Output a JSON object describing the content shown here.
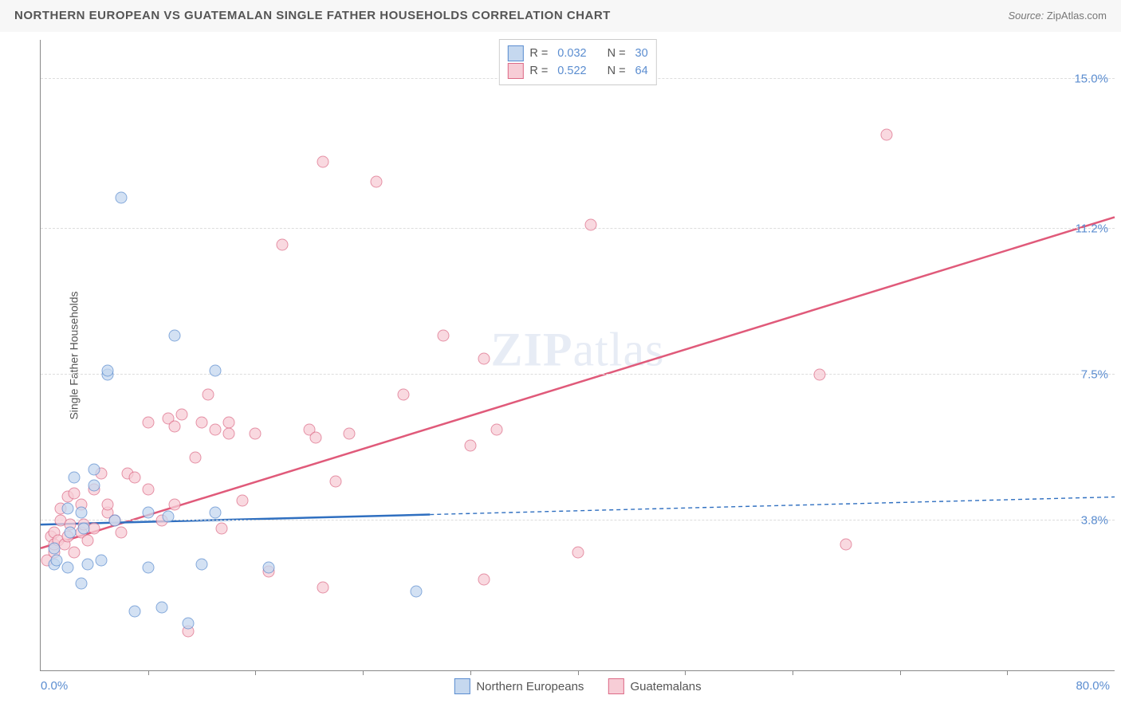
{
  "title": "NORTHERN EUROPEAN VS GUATEMALAN SINGLE FATHER HOUSEHOLDS CORRELATION CHART",
  "source_prefix": "Source: ",
  "source_name": "ZipAtlas.com",
  "ylabel": "Single Father Households",
  "watermark_a": "ZIP",
  "watermark_b": "atlas",
  "chart": {
    "type": "scatter",
    "xlim": [
      0,
      80
    ],
    "ylim": [
      0,
      16
    ],
    "xmin_label": "0.0%",
    "xmax_label": "80.0%",
    "xticks": [
      8,
      16,
      24,
      32,
      40,
      48,
      56,
      64,
      72
    ],
    "ylines": [
      {
        "y": 3.8,
        "label": "3.8%"
      },
      {
        "y": 7.5,
        "label": "7.5%"
      },
      {
        "y": 11.2,
        "label": "11.2%"
      },
      {
        "y": 15.0,
        "label": "15.0%"
      }
    ],
    "background_color": "#ffffff",
    "grid_color": "#dddddd",
    "axis_color": "#888888",
    "tick_label_color": "#5b8dd0"
  },
  "series_ne": {
    "label": "Northern Europeans",
    "fill": "#c5d8ef",
    "stroke": "#5b8dd0",
    "line_color": "#2f6fc0",
    "r_value": "0.032",
    "n_value": "30",
    "trend": {
      "x1": 0,
      "y1": 3.7,
      "x2": 80,
      "y2": 4.4,
      "solid_end_x": 29
    },
    "points": [
      [
        1,
        2.7
      ],
      [
        1,
        3.1
      ],
      [
        1.2,
        2.8
      ],
      [
        2,
        2.6
      ],
      [
        2,
        4.1
      ],
      [
        2.2,
        3.5
      ],
      [
        2.5,
        4.9
      ],
      [
        3,
        2.2
      ],
      [
        3,
        4.0
      ],
      [
        3.2,
        3.6
      ],
      [
        3.5,
        2.7
      ],
      [
        4,
        4.7
      ],
      [
        4,
        5.1
      ],
      [
        4.5,
        2.8
      ],
      [
        5,
        7.5
      ],
      [
        5,
        7.6
      ],
      [
        5.5,
        3.8
      ],
      [
        6,
        12.0
      ],
      [
        7,
        1.5
      ],
      [
        8,
        2.6
      ],
      [
        8,
        4.0
      ],
      [
        9,
        1.6
      ],
      [
        9.5,
        3.9
      ],
      [
        10,
        8.5
      ],
      [
        11,
        1.2
      ],
      [
        12,
        2.7
      ],
      [
        13,
        4.0
      ],
      [
        13,
        7.6
      ],
      [
        17,
        2.6
      ],
      [
        28,
        2.0
      ]
    ]
  },
  "series_g": {
    "label": "Guatemalans",
    "fill": "#f7cdd6",
    "stroke": "#dd6b87",
    "line_color": "#e05a7a",
    "r_value": "0.522",
    "n_value": "64",
    "trend": {
      "x1": 0,
      "y1": 3.1,
      "x2": 80,
      "y2": 11.5
    },
    "points": [
      [
        0.5,
        2.8
      ],
      [
        0.8,
        3.4
      ],
      [
        1,
        3.0
      ],
      [
        1,
        3.5
      ],
      [
        1,
        3.2
      ],
      [
        1.3,
        3.3
      ],
      [
        1.5,
        3.8
      ],
      [
        1.5,
        4.1
      ],
      [
        1.8,
        3.2
      ],
      [
        2,
        3.4
      ],
      [
        2,
        4.4
      ],
      [
        2.2,
        3.7
      ],
      [
        2.5,
        3.0
      ],
      [
        2.5,
        4.5
      ],
      [
        3,
        3.5
      ],
      [
        3,
        4.2
      ],
      [
        3.2,
        3.7
      ],
      [
        3.5,
        3.3
      ],
      [
        4,
        4.6
      ],
      [
        4,
        3.6
      ],
      [
        4.5,
        5.0
      ],
      [
        5,
        4.0
      ],
      [
        5,
        4.2
      ],
      [
        5.5,
        3.8
      ],
      [
        6,
        3.5
      ],
      [
        6.5,
        5.0
      ],
      [
        7,
        4.9
      ],
      [
        8,
        6.3
      ],
      [
        8,
        4.6
      ],
      [
        9,
        3.8
      ],
      [
        9.5,
        6.4
      ],
      [
        10,
        6.2
      ],
      [
        10,
        4.2
      ],
      [
        10.5,
        6.5
      ],
      [
        11,
        1.0
      ],
      [
        11.5,
        5.4
      ],
      [
        12,
        6.3
      ],
      [
        12.5,
        7.0
      ],
      [
        13,
        6.1
      ],
      [
        13.5,
        3.6
      ],
      [
        14,
        6.0
      ],
      [
        14,
        6.3
      ],
      [
        15,
        4.3
      ],
      [
        16,
        6.0
      ],
      [
        17,
        2.5
      ],
      [
        18,
        10.8
      ],
      [
        20,
        6.1
      ],
      [
        20.5,
        5.9
      ],
      [
        21,
        2.1
      ],
      [
        21,
        12.9
      ],
      [
        22,
        4.8
      ],
      [
        23,
        6.0
      ],
      [
        25,
        12.4
      ],
      [
        27,
        7.0
      ],
      [
        30,
        8.5
      ],
      [
        32,
        5.7
      ],
      [
        33,
        7.9
      ],
      [
        33,
        2.3
      ],
      [
        34,
        6.1
      ],
      [
        40,
        3.0
      ],
      [
        41,
        11.3
      ],
      [
        58,
        7.5
      ],
      [
        60,
        3.2
      ],
      [
        63,
        13.6
      ]
    ]
  },
  "legend_top": {
    "r_label": "R =",
    "n_label": "N ="
  }
}
